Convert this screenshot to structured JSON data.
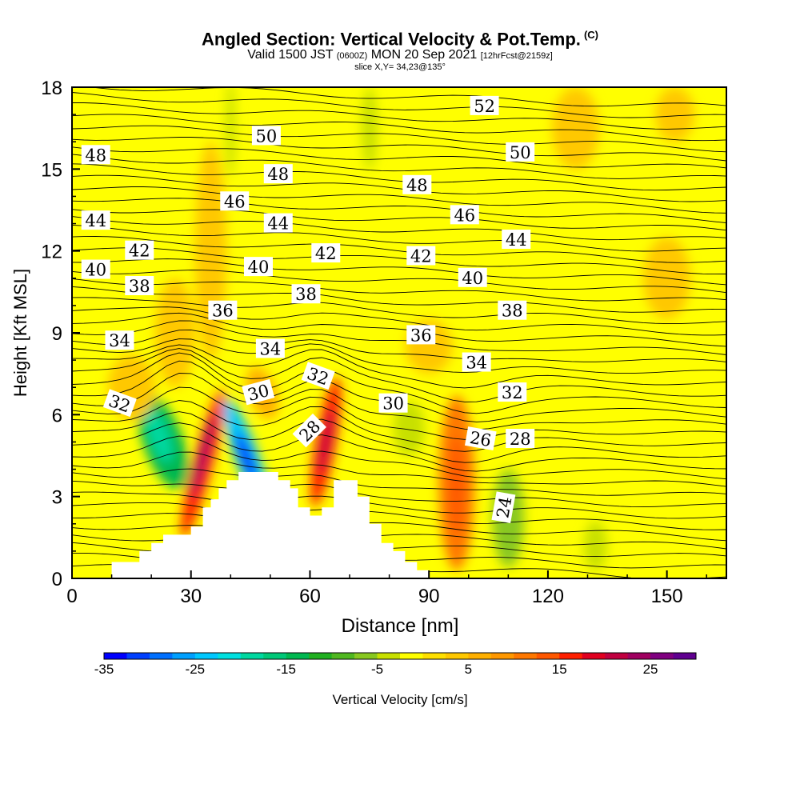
{
  "chart_data": {
    "type": "heatmap",
    "title": "Angled Section: Vertical Velocity & Pot.Temp.",
    "title_mark": "(C)",
    "subtitle": {
      "valid_a": "Valid 1500 JST",
      "valid_z": "(0600Z)",
      "valid_b": "MON 20 Sep 2021",
      "fcst": "[12hrFcst@2159z]"
    },
    "slice_text": "slice X,Y= 34,23@135°",
    "xlabel": "Distance [nm]",
    "ylabel": "Height [Kft MSL]",
    "xlim": [
      0,
      165
    ],
    "ylim": [
      0,
      18
    ],
    "xticks": [
      "0",
      "30",
      "60",
      "90",
      "120",
      "150"
    ],
    "yticks": [
      "0",
      "3",
      "6",
      "9",
      "12",
      "15",
      "18"
    ],
    "grid": false,
    "colorbar": {
      "title": "Vertical Velocity [cm/s]",
      "min": -35,
      "max": 30,
      "step": 2.5,
      "tick_labels": [
        "-35",
        "-25",
        "-15",
        "-5",
        "5",
        "15",
        "25"
      ],
      "colors": [
        "#0000ff",
        "#0040ff",
        "#0070ff",
        "#00a0ff",
        "#00c8ff",
        "#00e0e0",
        "#00d8a0",
        "#00c878",
        "#00b850",
        "#20b020",
        "#50b820",
        "#88c820",
        "#c8e000",
        "#ffff00",
        "#ffe000",
        "#ffc800",
        "#ffb000",
        "#ff9800",
        "#ff7800",
        "#ff5800",
        "#ff2000",
        "#e00020",
        "#c00040",
        "#a00060",
        "#800080",
        "#600090"
      ]
    },
    "terrain": [
      [
        0,
        0
      ],
      [
        10,
        0
      ],
      [
        10,
        0.6
      ],
      [
        14,
        0.6
      ],
      [
        14,
        0.6
      ],
      [
        17,
        0.6
      ],
      [
        17,
        1.0
      ],
      [
        20,
        1.0
      ],
      [
        20,
        1.3
      ],
      [
        23,
        1.3
      ],
      [
        23,
        1.6
      ],
      [
        26,
        1.6
      ],
      [
        26,
        1.6
      ],
      [
        30,
        1.6
      ],
      [
        30,
        1.9
      ],
      [
        33,
        1.9
      ],
      [
        33,
        2.6
      ],
      [
        35,
        2.6
      ],
      [
        35,
        2.9
      ],
      [
        37,
        2.9
      ],
      [
        37,
        3.3
      ],
      [
        39,
        3.3
      ],
      [
        39,
        3.6
      ],
      [
        42,
        3.6
      ],
      [
        42,
        3.9
      ],
      [
        52,
        3.9
      ],
      [
        52,
        3.6
      ],
      [
        55,
        3.6
      ],
      [
        55,
        3.3
      ],
      [
        57,
        3.3
      ],
      [
        57,
        2.6
      ],
      [
        60,
        2.6
      ],
      [
        60,
        2.3
      ],
      [
        63,
        2.3
      ],
      [
        63,
        2.6
      ],
      [
        66,
        2.6
      ],
      [
        66,
        3.6
      ],
      [
        72,
        3.6
      ],
      [
        72,
        3.0
      ],
      [
        75,
        3.0
      ],
      [
        75,
        2.0
      ],
      [
        78,
        2.0
      ],
      [
        78,
        1.3
      ],
      [
        81,
        1.3
      ],
      [
        81,
        1.0
      ],
      [
        84,
        1.0
      ],
      [
        84,
        0.6
      ],
      [
        87,
        0.6
      ],
      [
        87,
        0.3
      ],
      [
        90,
        0.3
      ],
      [
        90,
        0
      ],
      [
        0,
        0
      ]
    ],
    "shading": [
      {
        "x": 33,
        "y": 4.2,
        "rx": 2.5,
        "ry": 2.8,
        "value": 17,
        "rot": 15
      },
      {
        "x": 33,
        "y": 4.5,
        "rx": 1.2,
        "ry": 1.6,
        "value": 24,
        "rot": 15
      },
      {
        "x": 44,
        "y": 4.5,
        "rx": 3.0,
        "ry": 2.2,
        "value": -25,
        "rot": -20
      },
      {
        "x": 44,
        "y": 4.4,
        "rx": 1.5,
        "ry": 1.0,
        "value": -35,
        "rot": -20
      },
      {
        "x": 64,
        "y": 5.0,
        "rx": 2.6,
        "ry": 2.4,
        "value": 17,
        "rot": 10
      },
      {
        "x": 64,
        "y": 5.0,
        "rx": 1.2,
        "ry": 1.2,
        "value": 22,
        "rot": 10
      },
      {
        "x": 23,
        "y": 5.0,
        "rx": 5.0,
        "ry": 1.8,
        "value": -15,
        "rot": -20
      },
      {
        "x": 22,
        "y": 5.2,
        "rx": 2.5,
        "ry": 1.0,
        "value": -20,
        "rot": -20
      },
      {
        "x": 97,
        "y": 3.5,
        "rx": 4.5,
        "ry": 3.2,
        "value": 10,
        "rot": 0
      },
      {
        "x": 97,
        "y": 3.4,
        "rx": 2.0,
        "ry": 1.8,
        "value": 14,
        "rot": 0
      },
      {
        "x": 110,
        "y": 2.2,
        "rx": 4.0,
        "ry": 1.8,
        "value": -7,
        "rot": 0
      },
      {
        "x": 132,
        "y": 1.2,
        "rx": 3.0,
        "ry": 0.9,
        "value": -5,
        "rot": 0
      },
      {
        "x": 15,
        "y": 7.0,
        "rx": 6.0,
        "ry": 1.2,
        "value": 4,
        "rot": 0
      },
      {
        "x": 48,
        "y": 6.8,
        "rx": 3.5,
        "ry": 1.0,
        "value": 6,
        "rot": -20
      },
      {
        "x": 26,
        "y": 9.0,
        "rx": 5.0,
        "ry": 2.0,
        "value": 3,
        "rot": 0
      },
      {
        "x": 35,
        "y": 12.0,
        "rx": 4.0,
        "ry": 4.0,
        "value": 3,
        "rot": 0
      },
      {
        "x": 40,
        "y": 16.5,
        "rx": 1.2,
        "ry": 1.8,
        "value": -3,
        "rot": 0
      },
      {
        "x": 75,
        "y": 16.5,
        "rx": 2.0,
        "ry": 1.5,
        "value": -4,
        "rot": 0
      },
      {
        "x": 127,
        "y": 16.5,
        "rx": 6.0,
        "ry": 1.5,
        "value": 3,
        "rot": 0
      },
      {
        "x": 152,
        "y": 17.0,
        "rx": 5.0,
        "ry": 1.0,
        "value": 3,
        "rot": 0
      },
      {
        "x": 90,
        "y": 8.5,
        "rx": 6.0,
        "ry": 1.0,
        "value": 3,
        "rot": 0
      },
      {
        "x": 150,
        "y": 11.0,
        "rx": 6.0,
        "ry": 1.5,
        "value": 3,
        "rot": 0
      },
      {
        "x": 85,
        "y": 5.5,
        "rx": 4.0,
        "ry": 1.0,
        "value": -3,
        "rot": 0
      }
    ],
    "contour_labels": [
      {
        "v": "52",
        "x": 104,
        "y": 17.3,
        "rot": 0
      },
      {
        "v": "50",
        "x": 49,
        "y": 16.2,
        "rot": 0
      },
      {
        "v": "50",
        "x": 113,
        "y": 15.6,
        "rot": 0
      },
      {
        "v": "48",
        "x": 6,
        "y": 15.5,
        "rot": 0
      },
      {
        "v": "48",
        "x": 52,
        "y": 14.8,
        "rot": 0
      },
      {
        "v": "48",
        "x": 87,
        "y": 14.4,
        "rot": 0
      },
      {
        "v": "46",
        "x": 41,
        "y": 13.8,
        "rot": 0
      },
      {
        "v": "46",
        "x": 99,
        "y": 13.3,
        "rot": 0
      },
      {
        "v": "44",
        "x": 6,
        "y": 13.1,
        "rot": 0
      },
      {
        "v": "44",
        "x": 52,
        "y": 13.0,
        "rot": 0
      },
      {
        "v": "44",
        "x": 112,
        "y": 12.4,
        "rot": 0
      },
      {
        "v": "42",
        "x": 17,
        "y": 12.0,
        "rot": 0
      },
      {
        "v": "42",
        "x": 64,
        "y": 11.9,
        "rot": 0
      },
      {
        "v": "42",
        "x": 88,
        "y": 11.8,
        "rot": 0
      },
      {
        "v": "40",
        "x": 6,
        "y": 11.3,
        "rot": 0
      },
      {
        "v": "40",
        "x": 47,
        "y": 11.4,
        "rot": 0
      },
      {
        "v": "40",
        "x": 101,
        "y": 11.0,
        "rot": 0
      },
      {
        "v": "38",
        "x": 17,
        "y": 10.7,
        "rot": 0
      },
      {
        "v": "38",
        "x": 59,
        "y": 10.4,
        "rot": 0
      },
      {
        "v": "38",
        "x": 111,
        "y": 9.8,
        "rot": 0
      },
      {
        "v": "36",
        "x": 38,
        "y": 9.8,
        "rot": 0
      },
      {
        "v": "36",
        "x": 88,
        "y": 8.9,
        "rot": 0
      },
      {
        "v": "34",
        "x": 12,
        "y": 8.7,
        "rot": 0
      },
      {
        "v": "34",
        "x": 50,
        "y": 8.4,
        "rot": 0
      },
      {
        "v": "34",
        "x": 102,
        "y": 7.9,
        "rot": 0
      },
      {
        "v": "32",
        "x": 12,
        "y": 6.4,
        "rot": 20
      },
      {
        "v": "32",
        "x": 62,
        "y": 7.4,
        "rot": 20
      },
      {
        "v": "32",
        "x": 111,
        "y": 6.8,
        "rot": 0
      },
      {
        "v": "30",
        "x": 47,
        "y": 6.8,
        "rot": -15
      },
      {
        "v": "30",
        "x": 81,
        "y": 6.4,
        "rot": 0
      },
      {
        "v": "28",
        "x": 60,
        "y": 5.4,
        "rot": -45
      },
      {
        "v": "28",
        "x": 113,
        "y": 5.1,
        "rot": 0
      },
      {
        "v": "26",
        "x": 103,
        "y": 5.1,
        "rot": 10
      },
      {
        "v": "24",
        "x": 109,
        "y": 2.6,
        "rot": -80
      }
    ]
  }
}
